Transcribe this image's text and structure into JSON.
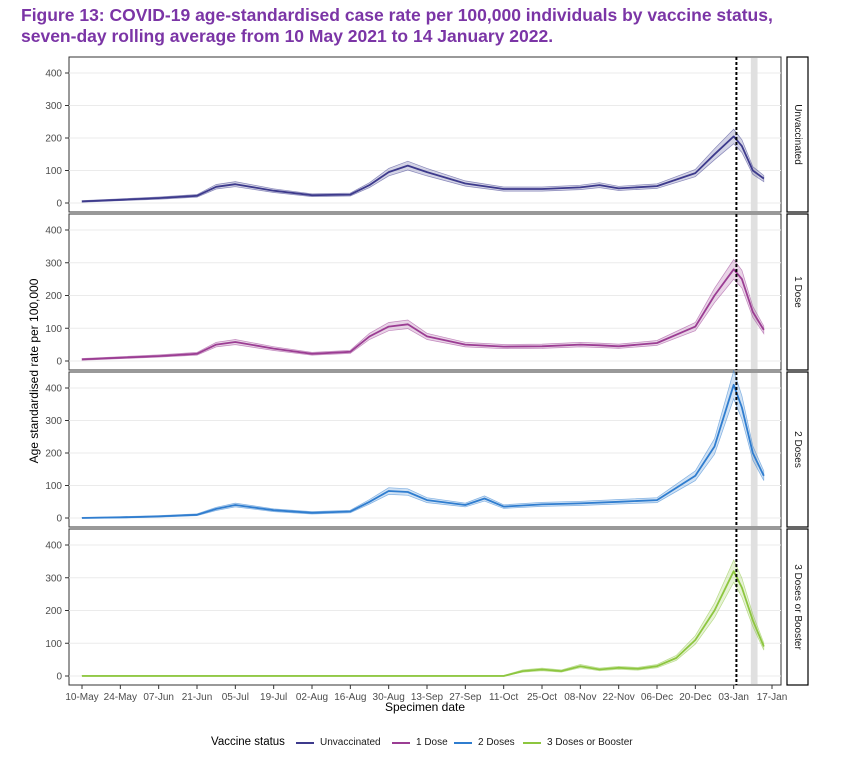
{
  "figure": {
    "title": "Figure 13: COVID-19 age-standardised case rate per 100,000 individuals by vaccine status, seven-day rolling average from 10 May 2021 to 14 January 2022."
  },
  "chart_data": {
    "type": "line",
    "xlabel": "Specimen date",
    "ylabel": "Age standardised rate per 100,000",
    "x_ticks": [
      "10-May",
      "24-May",
      "07-Jun",
      "21-Jun",
      "05-Jul",
      "19-Jul",
      "02-Aug",
      "16-Aug",
      "30-Aug",
      "13-Sep",
      "27-Sep",
      "11-Oct",
      "25-Oct",
      "08-Nov",
      "22-Nov",
      "06-Dec",
      "20-Dec",
      "03-Jan",
      "17-Jan"
    ],
    "y_ticks": [
      0,
      100,
      200,
      300,
      400
    ],
    "ylim": [
      0,
      400
    ],
    "grid": true,
    "vertical_reference": "04-Jan",
    "shaded_region": [
      "10-Jan",
      "11-Jan"
    ],
    "legend": {
      "title": "Vaccine status",
      "position": "bottom"
    },
    "series": [
      {
        "name": "Unvaccinated",
        "panel": "Unvaccinated",
        "color": "#3d3a8c",
        "x": [
          "10-May",
          "24-May",
          "07-Jun",
          "21-Jun",
          "28-Jun",
          "05-Jul",
          "19-Jul",
          "02-Aug",
          "16-Aug",
          "23-Aug",
          "30-Aug",
          "06-Sep",
          "13-Sep",
          "27-Sep",
          "11-Oct",
          "25-Oct",
          "08-Nov",
          "15-Nov",
          "22-Nov",
          "06-Dec",
          "20-Dec",
          "27-Dec",
          "03-Jan",
          "06-Jan",
          "10-Jan",
          "14-Jan"
        ],
        "values": [
          5,
          10,
          15,
          22,
          50,
          58,
          38,
          24,
          26,
          55,
          95,
          115,
          95,
          60,
          43,
          43,
          48,
          55,
          45,
          52,
          92,
          150,
          205,
          175,
          100,
          75
        ]
      },
      {
        "name": "1 Dose",
        "panel": "1 Dose",
        "color": "#9b3d93",
        "x": [
          "10-May",
          "24-May",
          "07-Jun",
          "21-Jun",
          "28-Jun",
          "05-Jul",
          "19-Jul",
          "02-Aug",
          "16-Aug",
          "23-Aug",
          "30-Aug",
          "06-Sep",
          "13-Sep",
          "27-Sep",
          "11-Oct",
          "25-Oct",
          "08-Nov",
          "15-Nov",
          "22-Nov",
          "06-Dec",
          "20-Dec",
          "27-Dec",
          "03-Jan",
          "06-Jan",
          "10-Jan",
          "14-Jan"
        ],
        "values": [
          5,
          10,
          15,
          22,
          50,
          58,
          38,
          22,
          28,
          75,
          105,
          112,
          75,
          50,
          44,
          45,
          50,
          48,
          45,
          55,
          105,
          200,
          280,
          250,
          150,
          95
        ]
      },
      {
        "name": "2 Doses",
        "panel": "2 Doses",
        "color": "#2f7dcf",
        "x": [
          "10-May",
          "24-May",
          "07-Jun",
          "21-Jun",
          "28-Jun",
          "05-Jul",
          "19-Jul",
          "02-Aug",
          "16-Aug",
          "23-Aug",
          "30-Aug",
          "06-Sep",
          "13-Sep",
          "27-Sep",
          "04-Oct",
          "11-Oct",
          "25-Oct",
          "08-Nov",
          "22-Nov",
          "06-Dec",
          "20-Dec",
          "27-Dec",
          "03-Jan",
          "06-Jan",
          "10-Jan",
          "14-Jan"
        ],
        "values": [
          0,
          2,
          5,
          10,
          28,
          40,
          24,
          16,
          20,
          50,
          83,
          80,
          55,
          40,
          60,
          35,
          42,
          45,
          50,
          55,
          130,
          220,
          410,
          340,
          200,
          130
        ]
      },
      {
        "name": "3 Doses or Booster",
        "panel": "3 Doses or Booster",
        "color": "#8dc63f",
        "x": [
          "10-May",
          "24-May",
          "07-Jun",
          "21-Jun",
          "05-Jul",
          "19-Jul",
          "02-Aug",
          "16-Aug",
          "30-Aug",
          "13-Sep",
          "27-Sep",
          "11-Oct",
          "18-Oct",
          "25-Oct",
          "01-Nov",
          "08-Nov",
          "15-Nov",
          "22-Nov",
          "29-Nov",
          "06-Dec",
          "13-Dec",
          "20-Dec",
          "27-Dec",
          "03-Jan",
          "06-Jan",
          "10-Jan",
          "14-Jan"
        ],
        "values": [
          0,
          0,
          0,
          0,
          0,
          0,
          0,
          0,
          0,
          0,
          0,
          0,
          15,
          20,
          15,
          30,
          20,
          25,
          22,
          30,
          55,
          110,
          200,
          320,
          270,
          170,
          90
        ]
      }
    ]
  }
}
